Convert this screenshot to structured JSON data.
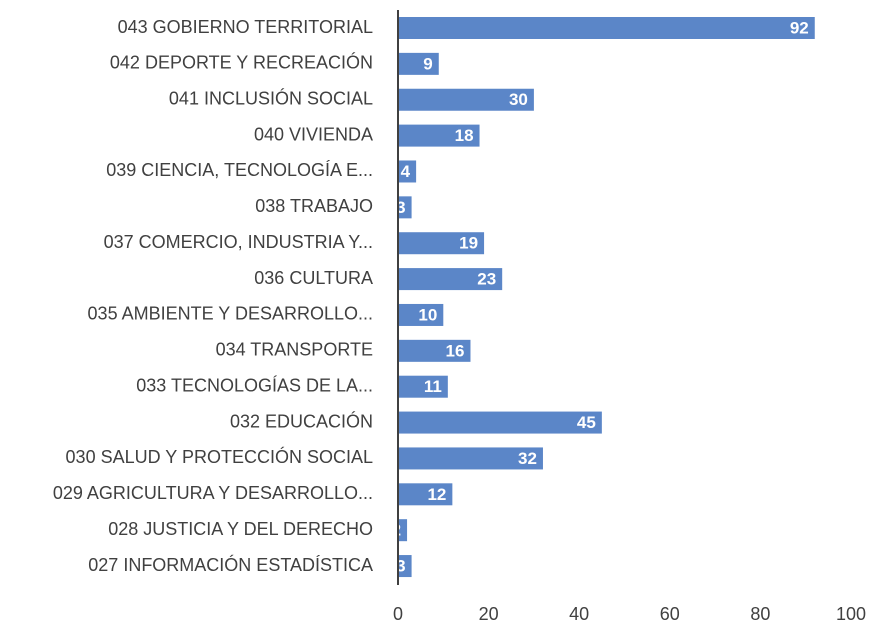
{
  "chart_data": {
    "type": "barh",
    "categories": [
      "043 GOBIERNO TERRITORIAL",
      "042 DEPORTE Y RECREACIÓN",
      "041 INCLUSIÓN SOCIAL",
      "040 VIVIENDA",
      "039 CIENCIA, TECNOLOGÍA E...",
      "038 TRABAJO",
      "037 COMERCIO, INDUSTRIA Y...",
      "036 CULTURA",
      "035 AMBIENTE Y DESARROLLO...",
      "034 TRANSPORTE",
      "033 TECNOLOGÍAS DE LA...",
      "032 EDUCACIÓN",
      "030 SALUD Y PROTECCIÓN SOCIAL",
      "029 AGRICULTURA Y DESARROLLO...",
      "028 JUSTICIA Y DEL DERECHO",
      "027 INFORMACIÓN ESTADÍSTICA"
    ],
    "values": [
      92,
      9,
      30,
      18,
      4,
      3,
      19,
      23,
      10,
      16,
      11,
      45,
      32,
      12,
      2,
      3
    ],
    "color": "#5b86c8",
    "xlim": [
      0,
      100
    ],
    "xticks": [
      0,
      20,
      40,
      60,
      80,
      100
    ],
    "grid": false
  }
}
